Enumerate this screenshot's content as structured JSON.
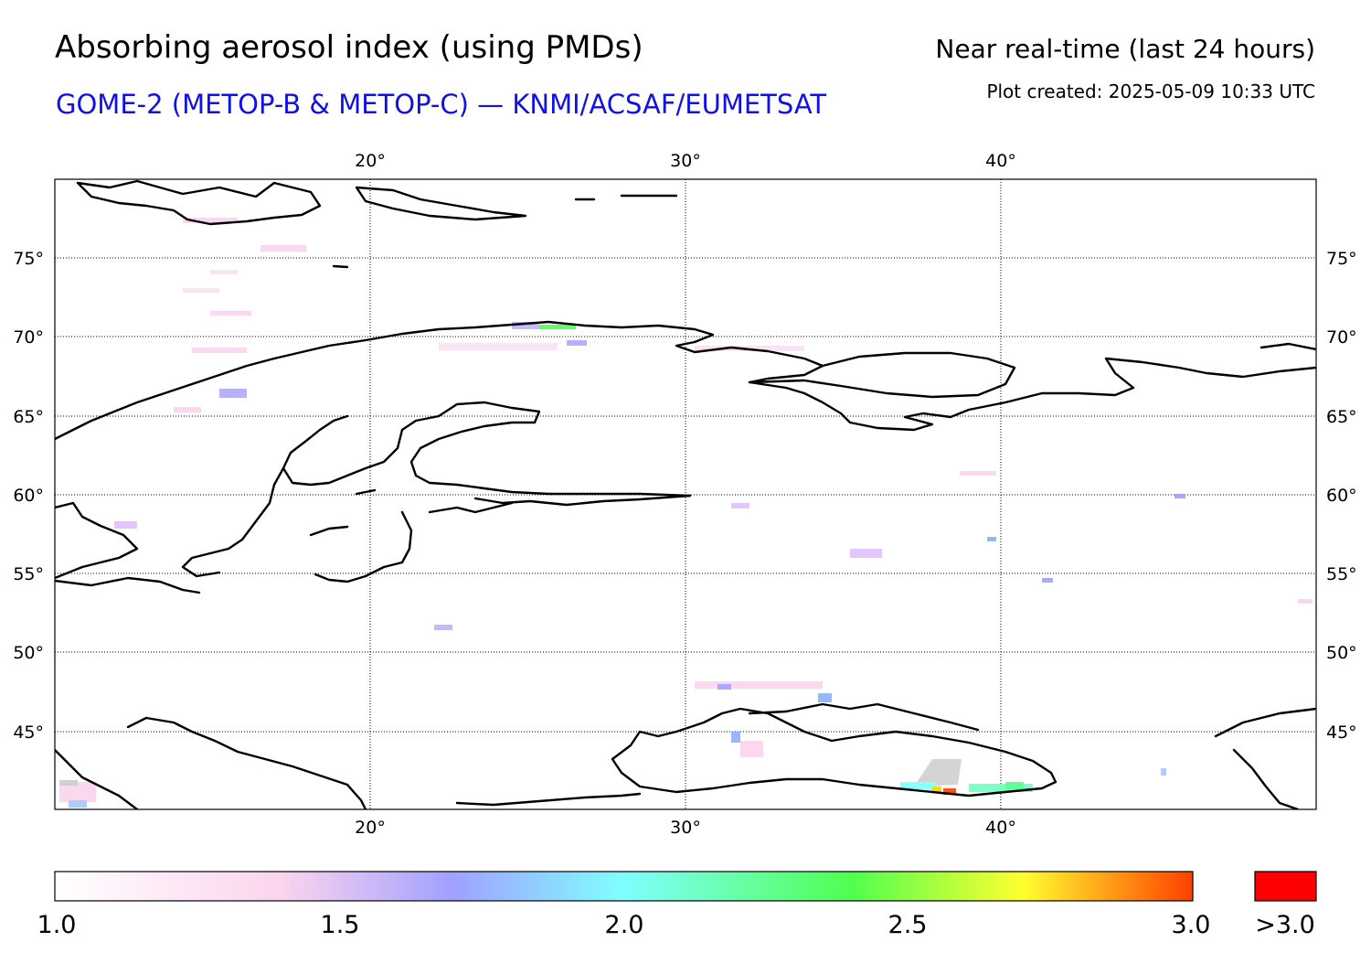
{
  "header": {
    "title": "Absorbing aerosol index (using PMDs)",
    "subtitle": "GOME-2 (METOP-B & METOP-C) — KNMI/ACSAF/EUMETSAT",
    "period": "Near real-time (last 24 hours)",
    "created": "Plot created: 2025-05-09 10:33 UTC"
  },
  "map": {
    "lon_ticks": [
      "20°",
      "30°",
      "40°"
    ],
    "lat_ticks": [
      "75°",
      "70°",
      "65°",
      "60°",
      "55°",
      "50°",
      "45°"
    ]
  },
  "colorbar": {
    "ticks": [
      "1.0",
      "1.5",
      "2.0",
      "2.5",
      "3.0"
    ],
    "overflow_label": ">3.0",
    "colors": [
      "#ffffff",
      "#fbd4ee",
      "#a0a0ff",
      "#80ffff",
      "#50ff50",
      "#ffff30",
      "#ff4000"
    ],
    "overflow_color": "#ff0000"
  }
}
